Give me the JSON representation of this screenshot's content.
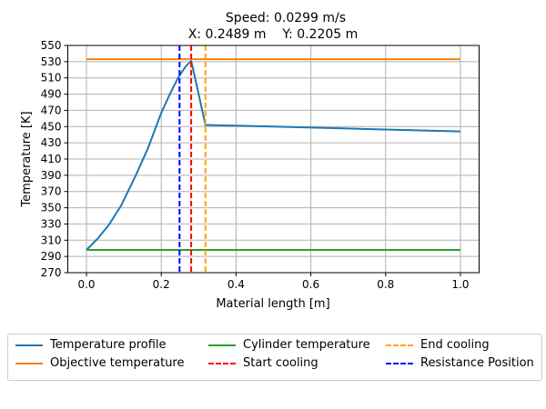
{
  "chart_data": {
    "type": "line",
    "title_line1": "Speed: 0.0299 m/s",
    "title_line2": "X: 0.2489 m    Y: 0.2205 m",
    "xlabel": "Material length [m]",
    "ylabel": "Temperature [K]",
    "xlim": [
      -0.05,
      1.05
    ],
    "ylim": [
      270,
      550
    ],
    "xticks": [
      "0.0",
      "0.2",
      "0.4",
      "0.6",
      "0.8",
      "1.0"
    ],
    "yticks": [
      "270",
      "290",
      "310",
      "330",
      "350",
      "370",
      "390",
      "410",
      "430",
      "450",
      "470",
      "490",
      "510",
      "530",
      "550"
    ],
    "grid": true,
    "legend_position": "below",
    "series": [
      {
        "name": "Temperature profile",
        "color": "#1f77b4",
        "style": "solid",
        "x": [
          0,
          0.03,
          0.06,
          0.093,
          0.133,
          0.165,
          0.2,
          0.225,
          0.246,
          0.265,
          0.28,
          0.3,
          0.318,
          0.5,
          0.75,
          1.0
        ],
        "y": [
          298,
          312,
          329,
          353,
          391,
          424,
          467,
          492,
          511,
          524,
          531,
          490,
          452,
          450,
          447,
          444
        ]
      },
      {
        "name": "Objective temperature",
        "color": "#ff7f0e",
        "style": "solid",
        "x": [
          0,
          1
        ],
        "y": [
          533,
          533
        ]
      },
      {
        "name": "Cylinder temperature",
        "color": "#2ca02c",
        "style": "solid",
        "x": [
          0,
          1
        ],
        "y": [
          298,
          298
        ]
      },
      {
        "name": "Start cooling",
        "color": "#ff0000",
        "style": "dashed",
        "vline": 0.28
      },
      {
        "name": "End cooling",
        "color": "#ffa500",
        "style": "dashed",
        "vline": 0.318
      },
      {
        "name": "Resistance Position",
        "color": "#0000ff",
        "style": "dashed",
        "vline": 0.2489
      }
    ]
  }
}
